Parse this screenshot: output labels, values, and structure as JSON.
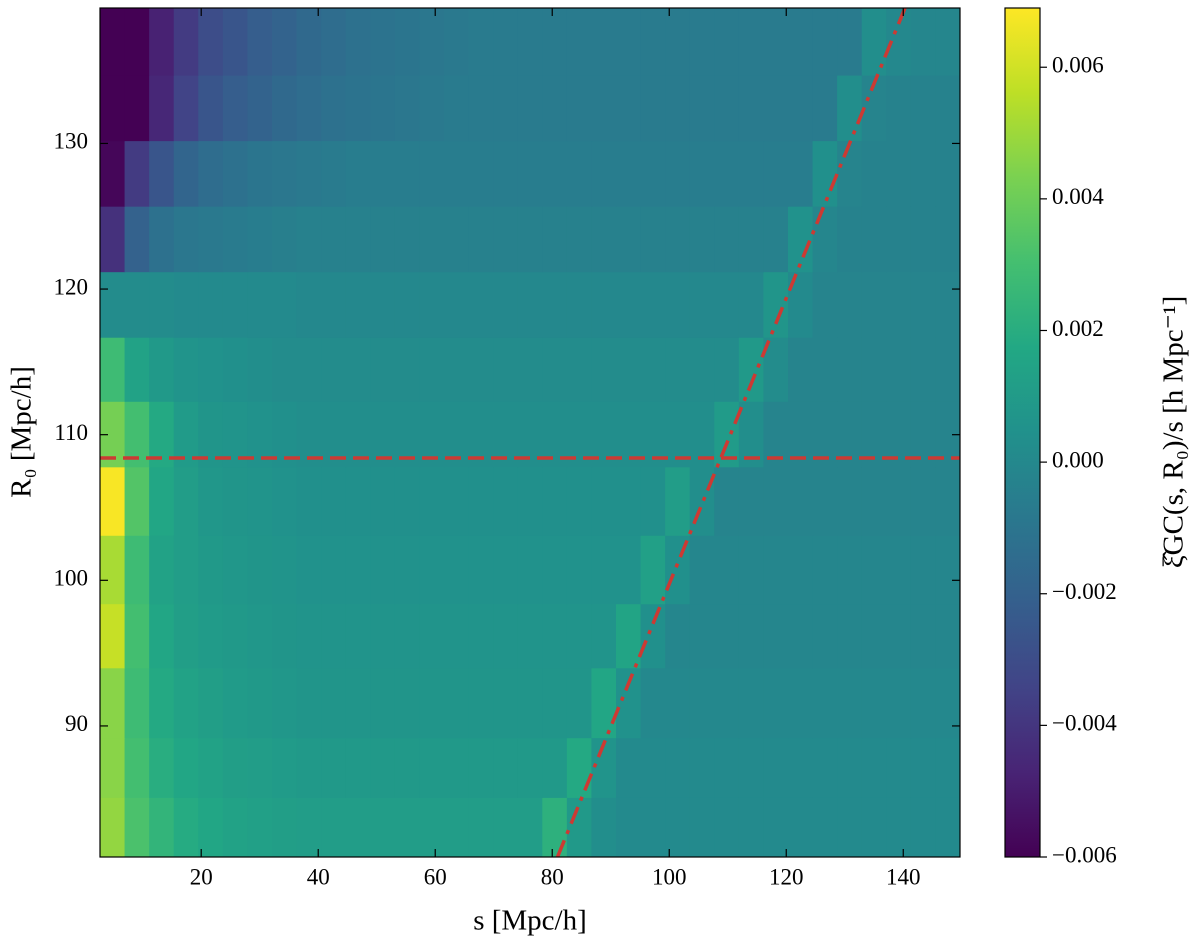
{
  "chart_data": {
    "type": "heatmap",
    "x_label": "s [Mpc/h]",
    "y_label": "R₀ [Mpc/h]",
    "colorbar_label": "ξ̂GC(s, R₀)/s [h Mpc⁻¹]",
    "colormap": "viridis",
    "x_bins": [
      2.7,
      6.9,
      11.1,
      15.3,
      19.5,
      23.7,
      27.9,
      32.1,
      36.3,
      40.5,
      44.7,
      48.9,
      53.1,
      57.3,
      61.5,
      65.7,
      69.9,
      74.1,
      78.3,
      82.5,
      86.7,
      90.9,
      95.1,
      99.3,
      103.5,
      107.7,
      111.9,
      116.1,
      120.3,
      124.5,
      128.7,
      132.9,
      137.1,
      141.3,
      145.5,
      149.7
    ],
    "y_bins": [
      81.0,
      85.1,
      89.2,
      94.0,
      98.4,
      103.1,
      107.8,
      112.3,
      116.7,
      121.2,
      125.7,
      130.2,
      134.7,
      139.3
    ],
    "values": [
      [
        0.0048,
        0.0032,
        0.0024,
        0.0019,
        0.0016,
        0.0014,
        0.0013,
        0.0012,
        0.0011,
        0.0011,
        0.0011,
        0.0011,
        0.0011,
        0.0011,
        0.0011,
        0.0011,
        0.0011,
        0.0011,
        0.0022,
        0.0009,
        0.0003,
        0.0001,
        0.0001,
        0.0001,
        0.0001,
        0.0001,
        0.0001,
        0.0001,
        0.0001,
        0.0001,
        0.0001,
        0.0001,
        0.0001,
        0.0001,
        0.0001
      ],
      [
        0.0046,
        0.003,
        0.002,
        0.0016,
        0.0014,
        0.0012,
        0.0011,
        0.001,
        0.0009,
        0.0009,
        0.0009,
        0.0009,
        0.0009,
        0.0009,
        0.0009,
        0.0009,
        0.0009,
        0.0009,
        0.0009,
        0.0018,
        0.0006,
        0.0001,
        0.0001,
        0.0001,
        0.0001,
        0.0001,
        0.0001,
        0.0001,
        0.0001,
        0.0001,
        0.0001,
        0.0001,
        0.0001,
        0.0001,
        0.0001
      ],
      [
        0.0046,
        0.0028,
        0.0018,
        0.0014,
        0.0012,
        0.001,
        0.0009,
        0.0008,
        0.0007,
        0.0007,
        0.0007,
        0.0007,
        0.0007,
        0.0007,
        0.0007,
        0.0007,
        0.0007,
        0.0007,
        0.0007,
        0.0007,
        0.0016,
        0.0005,
        0,
        0,
        0,
        0,
        0,
        0,
        0,
        0,
        0,
        0,
        0,
        0,
        0
      ],
      [
        0.0058,
        0.003,
        0.0016,
        0.0012,
        0.001,
        0.0009,
        0.0008,
        0.0007,
        0.0006,
        0.0006,
        0.0006,
        0.0006,
        0.0006,
        0.0006,
        0.0006,
        0.0006,
        0.0006,
        0.0006,
        0.0006,
        0.0006,
        0.0006,
        0.0015,
        0.0004,
        -0.0001,
        -0.0001,
        -0.0001,
        -0.0001,
        -0.0001,
        -0.0001,
        -0.0001,
        -0.0001,
        -0.0001,
        -0.0001,
        -0.0001,
        -0.0001
      ],
      [
        0.0052,
        0.0028,
        0.0014,
        0.0011,
        0.0009,
        0.0008,
        0.0007,
        0.0006,
        0.0005,
        0.0005,
        0.0005,
        0.0005,
        0.0005,
        0.0005,
        0.0005,
        0.0005,
        0.0005,
        0.0005,
        0.0005,
        0.0005,
        0.0005,
        0.0005,
        0.0013,
        0.0004,
        -0.0001,
        -0.0001,
        -0.0001,
        -0.0001,
        -0.0001,
        -0.0001,
        -0.0001,
        -0.0001,
        -0.0001,
        -0.0001,
        -0.0001
      ],
      [
        0.0068,
        0.0034,
        0.0016,
        0.0011,
        0.0008,
        0.0007,
        0.0006,
        0.0005,
        0.0004,
        0.0004,
        0.0004,
        0.0004,
        0.0004,
        0.0004,
        0.0004,
        0.0004,
        0.0004,
        0.0004,
        0.0004,
        0.0004,
        0.0004,
        0.0004,
        0.0004,
        0.0011,
        0.0003,
        -0.0002,
        -0.0002,
        -0.0002,
        -0.0002,
        -0.0002,
        -0.0002,
        -0.0002,
        -0.0002,
        -0.0002,
        -0.0002
      ],
      [
        0.0042,
        0.003,
        0.0018,
        0.001,
        0.0007,
        0.0006,
        0.0005,
        0.0004,
        0.0003,
        0.0003,
        0.0003,
        0.0003,
        0.0003,
        0.0003,
        0.0003,
        0.0003,
        0.0003,
        0.0003,
        0.0003,
        0.0003,
        0.0003,
        0.0003,
        0.0003,
        0.0003,
        0.0003,
        0.001,
        0.0003,
        -0.0002,
        -0.0002,
        -0.0002,
        -0.0002,
        -0.0002,
        -0.0002,
        -0.0002,
        -0.0002
      ],
      [
        0.0028,
        0.0014,
        0.0009,
        0.0006,
        0.0005,
        0.0004,
        0.0003,
        0.0002,
        0.0002,
        0.0002,
        0.0002,
        0.0002,
        0.0002,
        0.0002,
        0.0002,
        0.0002,
        0.0002,
        0.0002,
        0.0002,
        0.0002,
        0.0002,
        0.0002,
        0.0002,
        0.0002,
        0.0002,
        0.0002,
        0.0009,
        0.0002,
        -0.0002,
        -0.0002,
        -0.0002,
        -0.0002,
        -0.0002,
        -0.0002,
        -0.0002
      ],
      [
        0.0002,
        0.0002,
        0.0002,
        0.0001,
        0.0001,
        0.0001,
        0.0001,
        0.0001,
        0,
        0,
        0,
        0,
        0,
        0,
        0,
        0,
        0,
        0,
        0,
        0,
        0,
        0,
        0,
        0,
        0,
        0,
        0,
        0.0007,
        0.0001,
        -0.0002,
        -0.0002,
        -0.0002,
        -0.0002,
        -0.0002,
        -0.0002
      ],
      [
        -0.0042,
        -0.002,
        -0.0012,
        -0.0009,
        -0.0008,
        -0.0007,
        -0.0006,
        -0.0005,
        -0.0004,
        -0.0004,
        -0.0004,
        -0.0004,
        -0.0004,
        -0.0004,
        -0.0004,
        -0.0004,
        -0.0004,
        -0.0004,
        -0.0004,
        -0.0004,
        -0.0004,
        -0.0004,
        -0.0004,
        -0.0004,
        -0.0004,
        -0.0004,
        -0.0004,
        -0.0004,
        0.0005,
        -0.0001,
        -0.0003,
        -0.0003,
        -0.0003,
        -0.0003,
        -0.0003
      ],
      [
        -0.0058,
        -0.0038,
        -0.0026,
        -0.0018,
        -0.0014,
        -0.0012,
        -0.001,
        -0.0009,
        -0.0008,
        -0.0007,
        -0.0006,
        -0.0006,
        -0.0006,
        -0.0006,
        -0.0006,
        -0.0006,
        -0.0006,
        -0.0006,
        -0.0006,
        -0.0006,
        -0.0006,
        -0.0006,
        -0.0006,
        -0.0006,
        -0.0006,
        -0.0006,
        -0.0006,
        -0.0006,
        -0.0006,
        0.0004,
        -0.0002,
        -0.0003,
        -0.0003,
        -0.0003,
        -0.0003
      ],
      [
        -0.006,
        -0.006,
        -0.0046,
        -0.0034,
        -0.0026,
        -0.0022,
        -0.0019,
        -0.0016,
        -0.0014,
        -0.0012,
        -0.0011,
        -0.001,
        -0.0009,
        -0.0008,
        -0.0007,
        -0.0007,
        -0.0007,
        -0.0007,
        -0.0007,
        -0.0007,
        -0.0007,
        -0.0007,
        -0.0007,
        -0.0007,
        -0.0007,
        -0.0007,
        -0.0007,
        -0.0007,
        -0.0007,
        -0.0007,
        0.0003,
        -0.0002,
        -0.0003,
        -0.0003,
        -0.0003
      ],
      [
        -0.006,
        -0.006,
        -0.0048,
        -0.0038,
        -0.003,
        -0.0026,
        -0.0022,
        -0.0019,
        -0.0016,
        -0.0014,
        -0.0012,
        -0.0011,
        -0.001,
        -0.0009,
        -0.0008,
        -0.0007,
        -0.0007,
        -0.0007,
        -0.0007,
        -0.0007,
        -0.0007,
        -0.0007,
        -0.0007,
        -0.0007,
        -0.0007,
        -0.0007,
        -0.0007,
        -0.0007,
        -0.0007,
        -0.0007,
        -0.0007,
        0.0003,
        0,
        -0.0001,
        -0.0001
      ]
    ],
    "xlim": [
      2.7,
      149.7
    ],
    "ylim": [
      81.0,
      139.3
    ],
    "xticks": [
      20,
      40,
      60,
      80,
      100,
      120,
      140
    ],
    "yticks": [
      90,
      100,
      110,
      120,
      130
    ],
    "clim": [
      -0.006,
      0.0069
    ],
    "cticks": [
      {
        "value": -0.006,
        "label": "−0.006"
      },
      {
        "value": -0.004,
        "label": "−0.004"
      },
      {
        "value": -0.002,
        "label": "−0.002"
      },
      {
        "value": 0,
        "label": "0.000"
      },
      0.002,
      0.004,
      0.006
    ],
    "lines": [
      {
        "style": "dashed",
        "color": "#cc3a33",
        "y": 108.4
      },
      {
        "style": "dashdot",
        "color": "#cc3a33",
        "x": [
          80.9,
          140.3
        ],
        "y": [
          81.0,
          139.3
        ]
      }
    ]
  }
}
